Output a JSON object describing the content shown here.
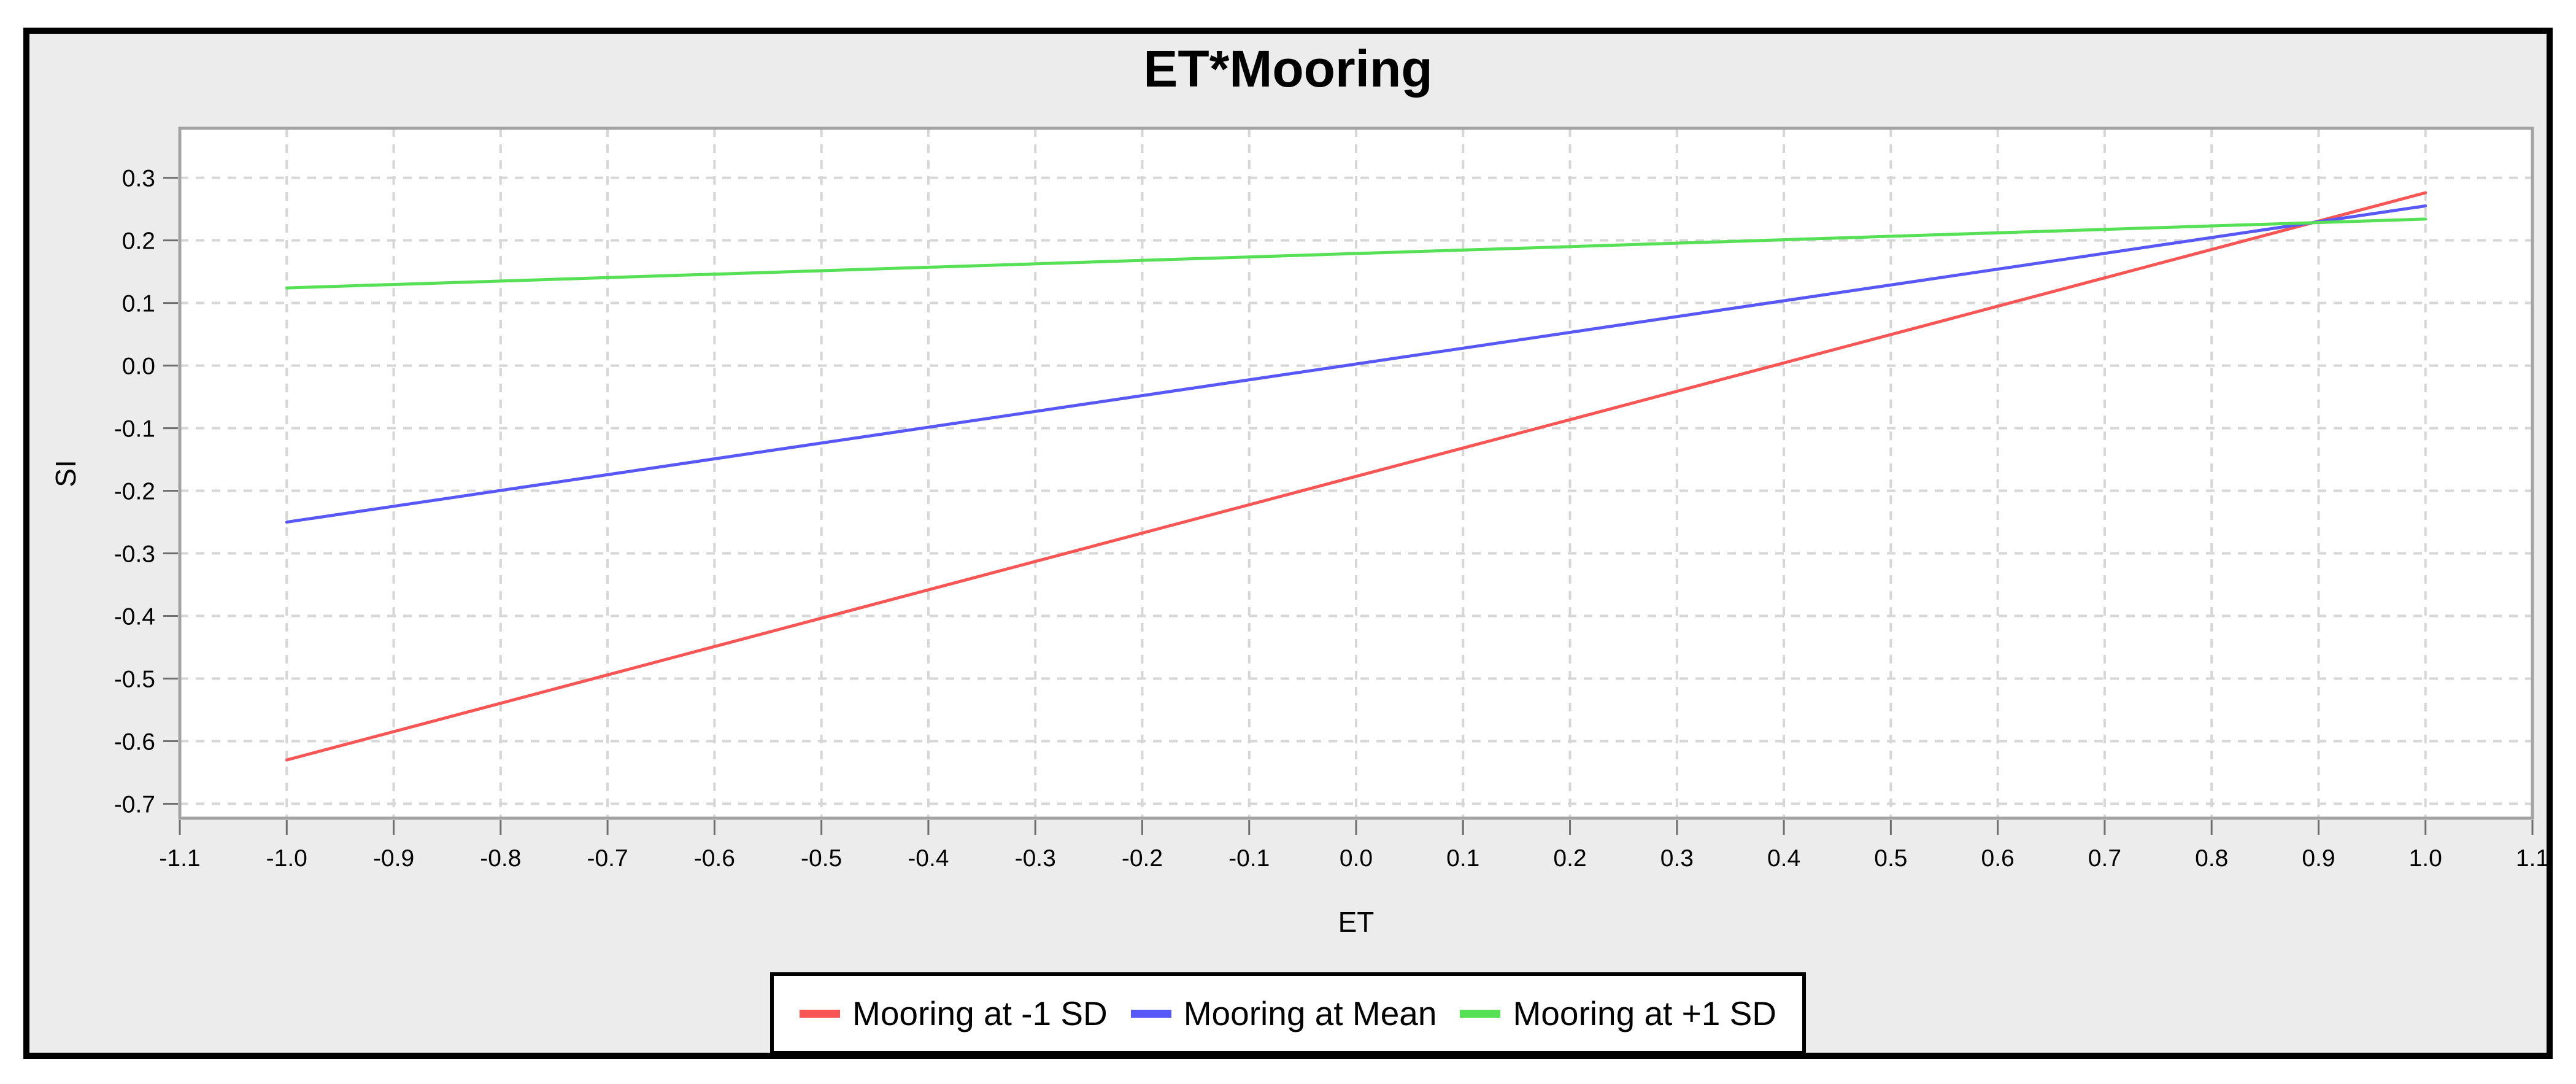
{
  "chart_data": {
    "type": "line",
    "title": "ET*Mooring",
    "xlabel": "ET",
    "ylabel": "SI",
    "xlim": [
      -1.1,
      1.1
    ],
    "ylim": [
      -0.723,
      0.379
    ],
    "x_ticks": [
      -1.1,
      -1.0,
      -0.9,
      -0.8,
      -0.7,
      -0.6,
      -0.5,
      -0.4,
      -0.3,
      -0.2,
      -0.1,
      0.0,
      0.1,
      0.2,
      0.3,
      0.4,
      0.5,
      0.6,
      0.7,
      0.8,
      0.9,
      1.0,
      1.1
    ],
    "y_ticks": [
      0.3,
      0.2,
      0.1,
      0.0,
      -0.1,
      -0.2,
      -0.3,
      -0.4,
      -0.5,
      -0.6,
      -0.7
    ],
    "grid": "dashed",
    "legend_position": "bottom-center",
    "series": [
      {
        "name": "Mooring at -1 SD",
        "color": "#f85555",
        "x": [
          -1.0,
          1.0
        ],
        "y": [
          -0.63,
          0.276
        ]
      },
      {
        "name": "Mooring at Mean",
        "color": "#5858f8",
        "x": [
          -1.0,
          1.0
        ],
        "y": [
          -0.25,
          0.255
        ]
      },
      {
        "name": "Mooring at +1 SD",
        "color": "#55e055",
        "x": [
          -1.0,
          1.0
        ],
        "y": [
          0.124,
          0.234
        ]
      }
    ]
  },
  "colors": {
    "page_bg": "#ffffff",
    "chart_bg": "#ececec",
    "plot_bg": "#ffffff",
    "plot_border": "#a3a3a3",
    "grid": "#d6d6d6",
    "tick_mark": "#6e6e6e",
    "tick_label": "#000000",
    "frame_border": "#000000",
    "legend_border": "#000000",
    "legend_bg": "#ffffff"
  }
}
